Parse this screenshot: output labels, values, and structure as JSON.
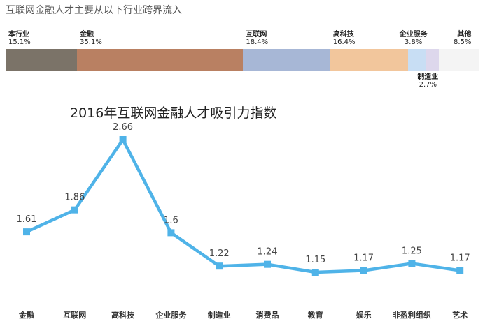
{
  "chart_data": [
    {
      "type": "bar",
      "title": "互联网金融人才主要从以下行业跨界流入",
      "segments": [
        {
          "name": "本行业",
          "value": 15.1,
          "label": "15.1%",
          "color": "#7b7368"
        },
        {
          "name": "金融",
          "value": 35.1,
          "label": "35.1%",
          "color": "#b98062"
        },
        {
          "name": "互联网",
          "value": 18.4,
          "label": "18.4%",
          "color": "#a7b7d6"
        },
        {
          "name": "高科技",
          "value": 16.4,
          "label": "16.4%",
          "color": "#f2c69c"
        },
        {
          "name": "企业服务",
          "value": 3.8,
          "label": "3.8%",
          "color": "#c8def4"
        },
        {
          "name": "制造业",
          "value": 2.7,
          "label": "2.7%",
          "color": "#ddd7ec"
        },
        {
          "name": "其他",
          "value": 8.5,
          "label": "8.5%",
          "color": "#f4f4f4"
        }
      ]
    },
    {
      "type": "line",
      "title": "2016年互联网金融人才吸引力指数",
      "categories": [
        "金融",
        "互联网",
        "高科技",
        "企业服务",
        "制造业",
        "消费品",
        "教育",
        "娱乐",
        "非盈利组织",
        "艺术"
      ],
      "values": [
        1.61,
        1.86,
        2.66,
        1.6,
        1.22,
        1.24,
        1.15,
        1.17,
        1.25,
        1.17
      ],
      "value_labels": [
        "1.61",
        "1.86",
        "2.66",
        "1.6",
        "1.22",
        "1.24",
        "1.15",
        "1.17",
        "1.25",
        "1.17"
      ],
      "line_color": "#4fb3e8",
      "grid": false
    }
  ]
}
